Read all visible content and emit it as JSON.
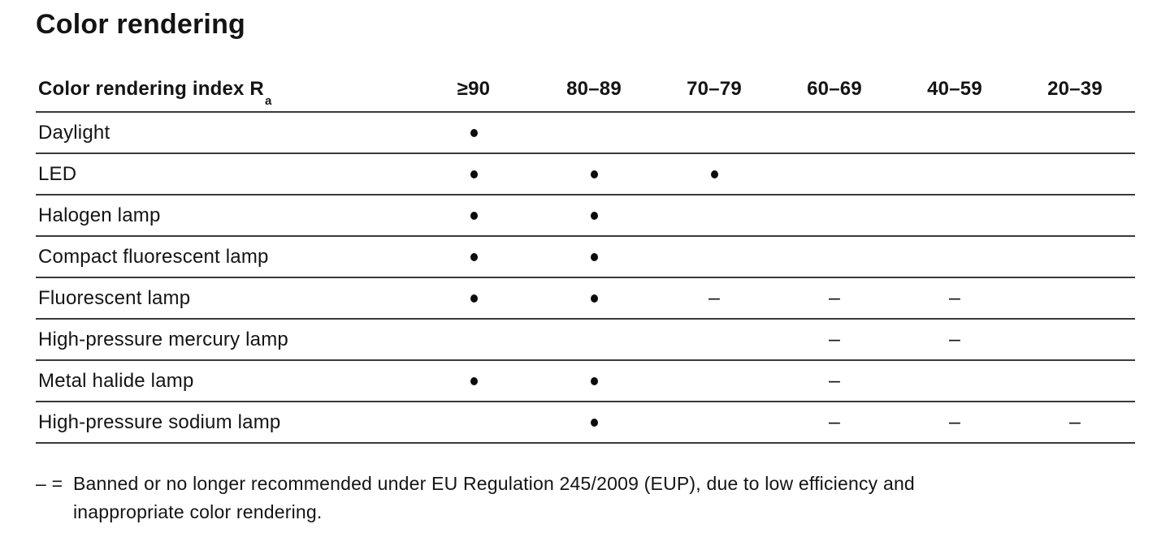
{
  "page": {
    "title": "Color rendering"
  },
  "table": {
    "header": {
      "label": "Color rendering index R",
      "label_subscript": "a",
      "columns": [
        "≥90",
        "80–89",
        "70–79",
        "60–69",
        "40–59",
        "20–39"
      ]
    },
    "rows": [
      {
        "label": "Daylight",
        "cells": [
          "dot",
          "",
          "",
          "",
          "",
          ""
        ]
      },
      {
        "label": "LED",
        "cells": [
          "dot",
          "dot",
          "dot",
          "",
          "",
          ""
        ]
      },
      {
        "label": "Halogen lamp",
        "cells": [
          "dot",
          "dot",
          "",
          "",
          "",
          ""
        ]
      },
      {
        "label": "Compact fluorescent lamp",
        "cells": [
          "dot",
          "dot",
          "",
          "",
          "",
          ""
        ]
      },
      {
        "label": "Fluorescent lamp",
        "cells": [
          "dot",
          "dot",
          "dash",
          "dash",
          "dash",
          ""
        ]
      },
      {
        "label": "High-pressure mercury lamp",
        "cells": [
          "",
          "",
          "",
          "dash",
          "dash",
          ""
        ]
      },
      {
        "label": "Metal halide lamp",
        "cells": [
          "dot",
          "dot",
          "",
          "dash",
          "",
          ""
        ]
      },
      {
        "label": "High-pressure sodium lamp",
        "cells": [
          "",
          "dot",
          "",
          "dash",
          "dash",
          "dash"
        ]
      }
    ],
    "symbols": {
      "dot": "•",
      "dash": "–"
    }
  },
  "footnote": {
    "prefix": "– =",
    "lines": [
      "Banned or no longer recommended under EU Regulation 245/2009 (EUP), due to low efficiency and",
      "inappropriate color rendering."
    ]
  },
  "colors": {
    "background": "#ffffff",
    "text": "#141414",
    "rule": "#3a3a3a"
  }
}
